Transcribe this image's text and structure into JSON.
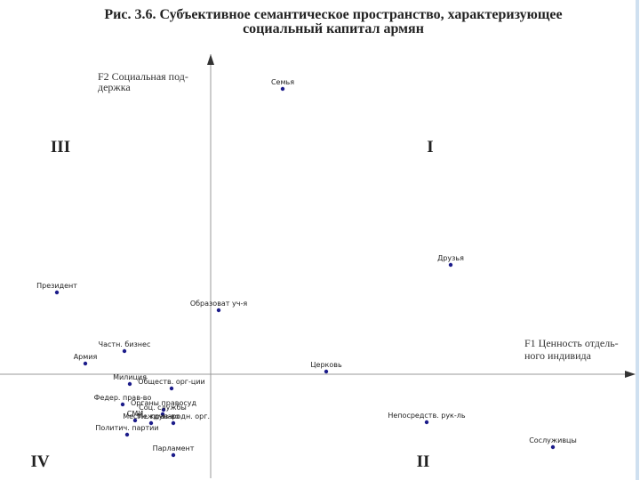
{
  "chart_data": {
    "type": "scatter",
    "title": [
      "Рис. 3.6. Субъективное семантическое пространство, характеризующее",
      "социальный капитал армян"
    ],
    "x_label": [
      "F1 Ценность отдель-",
      "ного индивида"
    ],
    "y_label": [
      "F2 Социальная под-",
      "держка"
    ],
    "quadrants": [
      "I",
      "II",
      "III",
      "IV"
    ],
    "color": "#1c1c8a",
    "xlim": [
      -2.3,
      4.8
    ],
    "ylim": [
      -1.1,
      3.6
    ],
    "points": [
      {
        "label": "Семья",
        "x": 0.81,
        "y": 3.21
      },
      {
        "label": "Друзья",
        "x": 2.7,
        "y": 1.23
      },
      {
        "label": "Президент",
        "x": -1.73,
        "y": 0.92
      },
      {
        "label": "Образоват уч-я",
        "x": 0.09,
        "y": 0.72
      },
      {
        "label": "Частн. бизнес",
        "x": -0.97,
        "y": 0.26
      },
      {
        "label": "Армия",
        "x": -1.41,
        "y": 0.12
      },
      {
        "label": "Церковь",
        "x": 1.3,
        "y": 0.03
      },
      {
        "label": "Милиция",
        "x": -0.91,
        "y": -0.11
      },
      {
        "label": "Обществ. орг-ции",
        "x": -0.44,
        "y": -0.16
      },
      {
        "label": "Федер. прав-во",
        "x": -0.99,
        "y": -0.34
      },
      {
        "label": "Органы правосуд",
        "x": -0.53,
        "y": -0.4
      },
      {
        "label": "СМИ",
        "x": -0.85,
        "y": -0.52
      },
      {
        "label": "Соц. службы",
        "x": -0.54,
        "y": -0.45
      },
      {
        "label": "Местн. прав-во",
        "x": -0.67,
        "y": -0.55
      },
      {
        "label": "Международн. орг.",
        "x": -0.42,
        "y": -0.55
      },
      {
        "label": "Политич. партии",
        "x": -0.94,
        "y": -0.68
      },
      {
        "label": "Непосредств. рук-ль",
        "x": 2.43,
        "y": -0.54
      },
      {
        "label": "Сослуживцы",
        "x": 3.85,
        "y": -0.82
      },
      {
        "label": "Парламент",
        "x": -0.42,
        "y": -0.91
      }
    ]
  }
}
